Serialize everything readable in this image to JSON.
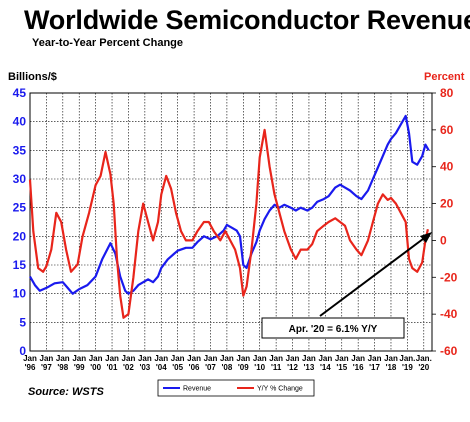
{
  "chart_data": {
    "type": "line",
    "title": "Worldwide Semiconductor Revenues",
    "subtitle": "Year-to-Year Percent Change",
    "y_left_label": "Billions/$",
    "y_right_label": "Percent",
    "y_left_lim": [
      0,
      45
    ],
    "y_left_ticks": [
      "0",
      "5",
      "10",
      "15",
      "20",
      "25",
      "30",
      "35",
      "40",
      "45"
    ],
    "y_right_lim": [
      -60,
      80
    ],
    "y_right_ticks": [
      "-60",
      "-40",
      "-20",
      "0",
      "20",
      "40",
      "60",
      "80"
    ],
    "x_top_labels": [
      "Jan",
      "Jan",
      "Jan",
      "Jan",
      "Jan",
      "Jan",
      "Jan",
      "Jan",
      "Jan",
      "Jan",
      "Jan",
      "Jan",
      "Jan",
      "Jan",
      "Jan",
      "Jan",
      "Jan",
      "Jan",
      "Jan",
      "Jan",
      "Jan",
      "Jan",
      "Jan",
      "Jan.",
      "Jan."
    ],
    "x_bottom_labels": [
      "'96",
      "'97",
      "'98",
      "'99",
      "'00",
      "'01",
      "'02",
      "'03",
      "'04",
      "'05",
      "'06",
      "'07",
      "'08",
      "'09",
      "'10",
      "'11",
      "'12",
      "'13",
      "'14",
      "'15",
      "'16",
      "'17",
      "'18",
      "'19",
      "'20"
    ],
    "grid": true,
    "legend": "bottom-center",
    "source": "Source: WSTS",
    "annotation": "Apr. '20 = 6.1% Y/Y",
    "series": [
      {
        "name": "Revenue",
        "axis": "left",
        "color": "#1a1aee",
        "points": [
          [
            1996.0,
            13
          ],
          [
            1996.3,
            11.5
          ],
          [
            1996.6,
            10.5
          ],
          [
            1997.0,
            11
          ],
          [
            1997.5,
            11.8
          ],
          [
            1998.0,
            12
          ],
          [
            1998.3,
            11
          ],
          [
            1998.6,
            10
          ],
          [
            1999.0,
            10.8
          ],
          [
            1999.5,
            11.5
          ],
          [
            2000.0,
            13
          ],
          [
            2000.4,
            16
          ],
          [
            2000.9,
            18.8
          ],
          [
            2001.2,
            17
          ],
          [
            2001.5,
            13
          ],
          [
            2001.8,
            10.5
          ],
          [
            2002.0,
            10
          ],
          [
            2002.3,
            10.5
          ],
          [
            2002.6,
            11.5
          ],
          [
            2002.9,
            12
          ],
          [
            2003.2,
            12.5
          ],
          [
            2003.5,
            12
          ],
          [
            2003.8,
            13
          ],
          [
            2004.0,
            14.5
          ],
          [
            2004.4,
            16
          ],
          [
            2004.8,
            17
          ],
          [
            2005.0,
            17.5
          ],
          [
            2005.5,
            18
          ],
          [
            2005.9,
            18
          ],
          [
            2006.2,
            19
          ],
          [
            2006.6,
            20
          ],
          [
            2007.0,
            19.5
          ],
          [
            2007.4,
            20
          ],
          [
            2007.8,
            21
          ],
          [
            2008.0,
            22
          ],
          [
            2008.3,
            21.5
          ],
          [
            2008.6,
            21
          ],
          [
            2008.8,
            20
          ],
          [
            2009.0,
            15
          ],
          [
            2009.2,
            14.5
          ],
          [
            2009.5,
            17
          ],
          [
            2009.8,
            19
          ],
          [
            2010.0,
            21
          ],
          [
            2010.3,
            23
          ],
          [
            2010.6,
            24.5
          ],
          [
            2010.9,
            25.5
          ],
          [
            2011.2,
            25
          ],
          [
            2011.5,
            25.5
          ],
          [
            2011.9,
            25
          ],
          [
            2012.2,
            24.5
          ],
          [
            2012.5,
            25
          ],
          [
            2012.9,
            24.5
          ],
          [
            2013.2,
            25
          ],
          [
            2013.5,
            26
          ],
          [
            2013.9,
            26.5
          ],
          [
            2014.2,
            27
          ],
          [
            2014.6,
            28.5
          ],
          [
            2014.9,
            29
          ],
          [
            2015.2,
            28.5
          ],
          [
            2015.5,
            28
          ],
          [
            2015.9,
            27
          ],
          [
            2016.2,
            26.5
          ],
          [
            2016.6,
            28
          ],
          [
            2016.9,
            30
          ],
          [
            2017.2,
            32
          ],
          [
            2017.5,
            34
          ],
          [
            2017.8,
            36
          ],
          [
            2018.0,
            37
          ],
          [
            2018.3,
            38
          ],
          [
            2018.6,
            39.5
          ],
          [
            2018.9,
            41
          ],
          [
            2019.1,
            38
          ],
          [
            2019.3,
            33
          ],
          [
            2019.6,
            32.5
          ],
          [
            2019.9,
            34
          ],
          [
            2020.1,
            36
          ],
          [
            2020.3,
            35
          ]
        ]
      },
      {
        "name": "Y/Y % Change",
        "axis": "right",
        "color": "#e8251b",
        "points": [
          [
            1996.0,
            33
          ],
          [
            1996.2,
            5
          ],
          [
            1996.5,
            -15
          ],
          [
            1996.8,
            -17
          ],
          [
            1997.0,
            -14
          ],
          [
            1997.3,
            -5
          ],
          [
            1997.6,
            15
          ],
          [
            1997.9,
            10
          ],
          [
            1998.2,
            -5
          ],
          [
            1998.5,
            -17
          ],
          [
            1998.9,
            -13
          ],
          [
            1999.2,
            2
          ],
          [
            1999.6,
            15
          ],
          [
            2000.0,
            30
          ],
          [
            2000.3,
            35
          ],
          [
            2000.6,
            48
          ],
          [
            2000.9,
            36
          ],
          [
            2001.1,
            20
          ],
          [
            2001.3,
            -10
          ],
          [
            2001.5,
            -30
          ],
          [
            2001.7,
            -42
          ],
          [
            2002.0,
            -40
          ],
          [
            2002.3,
            -20
          ],
          [
            2002.6,
            5
          ],
          [
            2002.9,
            20
          ],
          [
            2003.2,
            10
          ],
          [
            2003.5,
            0
          ],
          [
            2003.8,
            10
          ],
          [
            2004.0,
            25
          ],
          [
            2004.3,
            35
          ],
          [
            2004.6,
            28
          ],
          [
            2004.9,
            15
          ],
          [
            2005.2,
            5
          ],
          [
            2005.5,
            0
          ],
          [
            2005.9,
            0
          ],
          [
            2006.2,
            5
          ],
          [
            2006.6,
            10
          ],
          [
            2006.9,
            10
          ],
          [
            2007.2,
            5
          ],
          [
            2007.6,
            0
          ],
          [
            2007.9,
            5
          ],
          [
            2008.2,
            0
          ],
          [
            2008.5,
            -5
          ],
          [
            2008.8,
            -15
          ],
          [
            2009.0,
            -30
          ],
          [
            2009.2,
            -25
          ],
          [
            2009.5,
            -5
          ],
          [
            2009.8,
            20
          ],
          [
            2010.0,
            45
          ],
          [
            2010.3,
            60
          ],
          [
            2010.6,
            40
          ],
          [
            2010.9,
            25
          ],
          [
            2011.2,
            15
          ],
          [
            2011.5,
            5
          ],
          [
            2011.9,
            -5
          ],
          [
            2012.2,
            -10
          ],
          [
            2012.5,
            -5
          ],
          [
            2012.9,
            -5
          ],
          [
            2013.2,
            -2
          ],
          [
            2013.5,
            5
          ],
          [
            2013.9,
            8
          ],
          [
            2014.2,
            10
          ],
          [
            2014.6,
            12
          ],
          [
            2014.9,
            10
          ],
          [
            2015.2,
            8
          ],
          [
            2015.5,
            0
          ],
          [
            2015.9,
            -5
          ],
          [
            2016.2,
            -8
          ],
          [
            2016.6,
            0
          ],
          [
            2016.9,
            10
          ],
          [
            2017.2,
            20
          ],
          [
            2017.5,
            25
          ],
          [
            2017.8,
            22
          ],
          [
            2018.0,
            23
          ],
          [
            2018.3,
            20
          ],
          [
            2018.6,
            15
          ],
          [
            2018.9,
            10
          ],
          [
            2019.1,
            -10
          ],
          [
            2019.3,
            -15
          ],
          [
            2019.6,
            -17
          ],
          [
            2019.9,
            -12
          ],
          [
            2020.1,
            0
          ],
          [
            2020.25,
            6.1
          ]
        ]
      }
    ]
  }
}
